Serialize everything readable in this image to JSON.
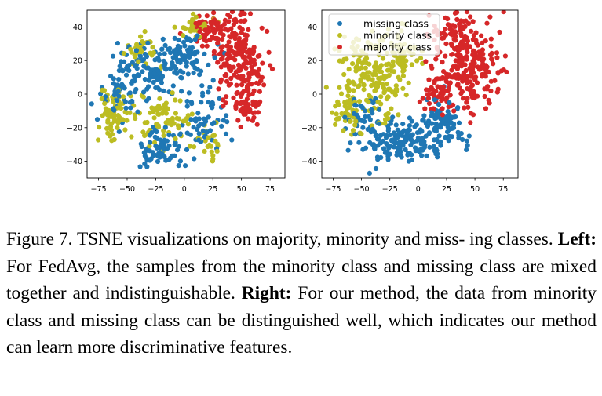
{
  "figure": {
    "legend": [
      "missing class",
      "minority class",
      "majority class"
    ],
    "colors": {
      "missing": "#1f77b4",
      "minority": "#bcbd22",
      "majority": "#d62728"
    }
  },
  "chart_data": [
    {
      "type": "scatter",
      "title": "",
      "xlabel": "",
      "ylabel": "",
      "xlim": [
        -85,
        88
      ],
      "ylim": [
        -50,
        50
      ],
      "xticks": [
        -75,
        -50,
        -25,
        0,
        25,
        50,
        75
      ],
      "yticks": [
        -40,
        -20,
        0,
        20,
        40
      ],
      "legend": null,
      "grid": false,
      "series": [
        {
          "name": "missing class",
          "color": "#1f77b4",
          "clusters": [
            {
              "cx": -32,
              "cy": 14,
              "rx": 28,
              "ry": 16,
              "n": 120
            },
            {
              "cx": -2,
              "cy": 22,
              "rx": 22,
              "ry": 14,
              "n": 80
            },
            {
              "cx": -22,
              "cy": -34,
              "rx": 18,
              "ry": 11,
              "n": 70
            },
            {
              "cx": 20,
              "cy": -14,
              "rx": 18,
              "ry": 16,
              "n": 60
            },
            {
              "cx": -55,
              "cy": 0,
              "rx": 18,
              "ry": 18,
              "n": 40
            }
          ]
        },
        {
          "name": "minority class",
          "color": "#bcbd22",
          "clusters": [
            {
              "cx": -60,
              "cy": -12,
              "rx": 14,
              "ry": 14,
              "n": 70
            },
            {
              "cx": -18,
              "cy": -14,
              "rx": 22,
              "ry": 14,
              "n": 70
            },
            {
              "cx": 10,
              "cy": 40,
              "rx": 14,
              "ry": 6,
              "n": 30
            },
            {
              "cx": -40,
              "cy": 25,
              "rx": 18,
              "ry": 10,
              "n": 30
            },
            {
              "cx": 20,
              "cy": -30,
              "rx": 12,
              "ry": 10,
              "n": 25
            }
          ]
        },
        {
          "name": "majority class",
          "color": "#d62728",
          "clusters": [
            {
              "cx": 50,
              "cy": 20,
              "rx": 20,
              "ry": 24,
              "n": 200
            },
            {
              "cx": 25,
              "cy": 38,
              "rx": 18,
              "ry": 8,
              "n": 60
            },
            {
              "cx": 55,
              "cy": -8,
              "rx": 12,
              "ry": 10,
              "n": 40
            }
          ]
        }
      ]
    },
    {
      "type": "scatter",
      "title": "",
      "xlabel": "",
      "ylabel": "",
      "xlim": [
        -85,
        88
      ],
      "ylim": [
        -50,
        50
      ],
      "xticks": [
        -75,
        -50,
        -25,
        0,
        25,
        50,
        75
      ],
      "yticks": [
        -40,
        -20,
        0,
        20,
        40
      ],
      "legend": "top-left",
      "grid": false,
      "series": [
        {
          "name": "missing class",
          "color": "#1f77b4",
          "clusters": [
            {
              "cx": -15,
              "cy": -28,
              "rx": 38,
              "ry": 12,
              "n": 170
            },
            {
              "cx": 20,
              "cy": -18,
              "rx": 20,
              "ry": 14,
              "n": 80
            },
            {
              "cx": -50,
              "cy": -12,
              "rx": 16,
              "ry": 8,
              "n": 30
            }
          ]
        },
        {
          "name": "minority class",
          "color": "#bcbd22",
          "clusters": [
            {
              "cx": -40,
              "cy": 10,
              "rx": 26,
              "ry": 22,
              "n": 180
            },
            {
              "cx": -15,
              "cy": 25,
              "rx": 18,
              "ry": 14,
              "n": 60
            },
            {
              "cx": -60,
              "cy": -10,
              "rx": 12,
              "ry": 10,
              "n": 40
            }
          ]
        },
        {
          "name": "majority class",
          "color": "#d62728",
          "clusters": [
            {
              "cx": 45,
              "cy": 18,
              "rx": 26,
              "ry": 24,
              "n": 240
            },
            {
              "cx": 30,
              "cy": 38,
              "rx": 20,
              "ry": 8,
              "n": 40
            },
            {
              "cx": 15,
              "cy": 0,
              "rx": 14,
              "ry": 10,
              "n": 40
            }
          ]
        }
      ]
    }
  ],
  "caption": {
    "prefix": "Figure 7.  TSNE visualizations on majority, minority and miss- ing classes. ",
    "left_label": "Left:",
    "left_text": " For FedAvg, the samples from the minority class and missing class are mixed together and indistinguishable. ",
    "right_label": "Right:",
    "right_text": " For our method, the data from minority class and missing class can be distinguished well, which indicates our method can learn more discriminative features."
  }
}
